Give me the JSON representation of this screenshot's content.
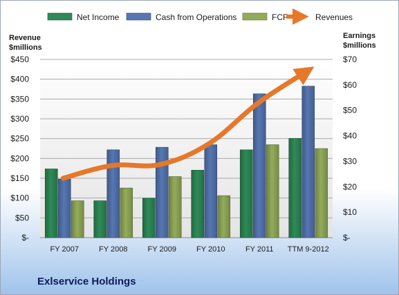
{
  "chart_data": {
    "type": "bar",
    "title": "Exlservice Holdings",
    "categories": [
      "FY 2007",
      "FY 2008",
      "FY 2009",
      "FY 2010",
      "FY 2011",
      "TTM 9-2012"
    ],
    "left_axis": {
      "label_lines": [
        "Revenue",
        "$millions"
      ],
      "ticks": [
        "$-",
        "$50",
        "$100",
        "$150",
        "$200",
        "$250",
        "$300",
        "$350",
        "$400",
        "$450"
      ],
      "ylim": [
        0,
        450
      ]
    },
    "right_axis": {
      "label_lines": [
        "Earnings",
        "$millions"
      ],
      "ticks": [
        "$-",
        "$10",
        "$20",
        "$30",
        "$40",
        "$50",
        "$60",
        "$70"
      ],
      "ylim": [
        0,
        70
      ]
    },
    "series": [
      {
        "name": "Net Income",
        "axis": "right",
        "color": "#2e8b57",
        "values": [
          27,
          14.5,
          15.5,
          26.5,
          34.5,
          39
        ]
      },
      {
        "name": "Cash from Operations",
        "axis": "right",
        "color": "#5677b3",
        "values": [
          23,
          34.5,
          35.5,
          36.5,
          56.5,
          59.5
        ]
      },
      {
        "name": "FCF",
        "axis": "right",
        "color": "#93ac5a",
        "values": [
          14.5,
          19.5,
          24,
          16.5,
          36.5,
          35
        ]
      }
    ],
    "line_series": {
      "name": "Revenues",
      "axis": "left",
      "color": "#e6782a",
      "values": [
        150,
        182,
        185,
        238,
        340,
        420
      ]
    },
    "legend_position": "top",
    "grid": true
  }
}
